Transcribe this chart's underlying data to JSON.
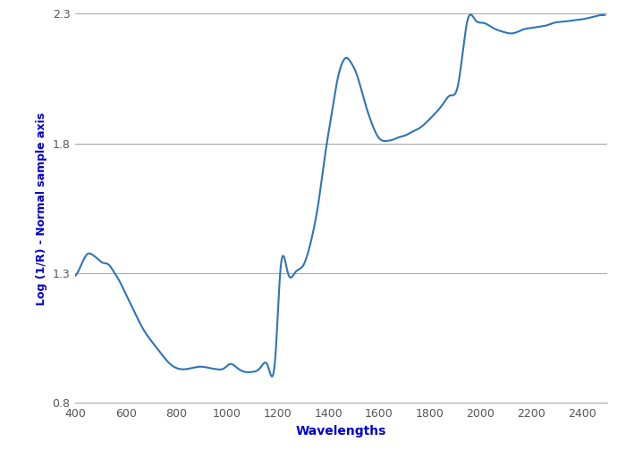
{
  "title": "",
  "xlabel": "Wavelengths",
  "ylabel": "Log (1/R) - Normal sample axis",
  "xlim": [
    400,
    2500
  ],
  "ylim": [
    0.8,
    2.3
  ],
  "yticks": [
    0.8,
    1.3,
    1.8,
    2.3
  ],
  "xticks": [
    400,
    600,
    800,
    1000,
    1200,
    1400,
    1600,
    1800,
    2000,
    2200,
    2400
  ],
  "line_color": "#2e75b6",
  "line_width": 1.5,
  "background_color": "#ffffff",
  "xlabel_color": "#0000cc",
  "ylabel_color": "#0000cc",
  "grid_color": "#aaaaaa",
  "tick_label_color": "#555555",
  "waypoints_x": [
    400,
    430,
    450,
    470,
    490,
    510,
    530,
    550,
    575,
    600,
    630,
    660,
    700,
    740,
    770,
    800,
    830,
    860,
    900,
    930,
    960,
    990,
    1010,
    1040,
    1070,
    1100,
    1130,
    1160,
    1190,
    1210,
    1240,
    1270,
    1300,
    1330,
    1360,
    1390,
    1410,
    1430,
    1450,
    1470,
    1490,
    1510,
    1540,
    1570,
    1600,
    1630,
    1655,
    1680,
    1700,
    1730,
    1760,
    1790,
    1820,
    1850,
    1880,
    1910,
    1950,
    1980,
    2010,
    2050,
    2090,
    2130,
    2170,
    2200,
    2230,
    2260,
    2290,
    2330,
    2370,
    2410,
    2450,
    2490
  ],
  "waypoints_y": [
    1.29,
    1.345,
    1.375,
    1.37,
    1.355,
    1.34,
    1.335,
    1.31,
    1.27,
    1.22,
    1.16,
    1.1,
    1.04,
    0.99,
    0.955,
    0.935,
    0.93,
    0.935,
    0.94,
    0.935,
    0.93,
    0.935,
    0.95,
    0.935,
    0.92,
    0.92,
    0.935,
    0.945,
    0.975,
    1.31,
    1.3,
    1.305,
    1.33,
    1.42,
    1.57,
    1.78,
    1.9,
    2.02,
    2.1,
    2.13,
    2.11,
    2.07,
    1.97,
    1.88,
    1.82,
    1.81,
    1.815,
    1.825,
    1.83,
    1.845,
    1.86,
    1.885,
    1.915,
    1.95,
    1.985,
    2.02,
    2.28,
    2.275,
    2.265,
    2.245,
    2.23,
    2.225,
    2.24,
    2.245,
    2.25,
    2.255,
    2.265,
    2.27,
    2.275,
    2.28,
    2.29,
    2.295
  ]
}
